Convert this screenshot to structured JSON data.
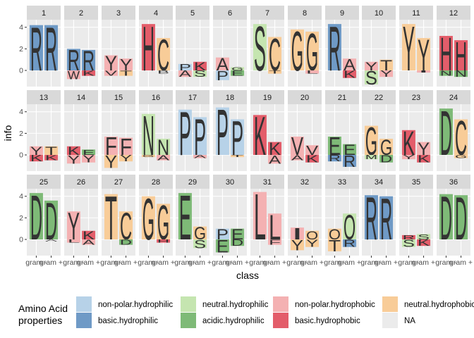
{
  "chart_data": {
    "type": "sequence-logo-facets",
    "xlabel": "class",
    "ylabel": "info",
    "ylim": [
      -1.5,
      4.7
    ],
    "yticks": [
      0,
      2,
      4
    ],
    "grid": true,
    "x_categories": [
      "gram -",
      "gram +"
    ],
    "x_tick_labels": [
      "gram -",
      "gram +"
    ],
    "legend": {
      "title_lines": [
        "Amino Acid",
        "properties"
      ],
      "placement": "bottom",
      "entries": [
        {
          "label": "non-polar.hydrophilic",
          "color": "#B7D2E8"
        },
        {
          "label": "neutral.hydrophilic",
          "color": "#C5E5B0"
        },
        {
          "label": "non-polar.hydrophobic",
          "color": "#F4B1B2"
        },
        {
          "label": "neutral.hydrophobic",
          "color": "#F8CC98"
        },
        {
          "label": "basic.hydrophilic",
          "color": "#6F9AC6"
        },
        {
          "label": "acidic.hydrophilic",
          "color": "#7EBA77"
        },
        {
          "label": "basic.hydrophobic",
          "color": "#E35D6A"
        },
        {
          "label": "NA",
          "color": "#EBEBEB"
        }
      ]
    },
    "panels": [
      {
        "id": "1",
        "columns": [
          [
            [
              "R",
              4.2,
              "basic.hydrophilic"
            ]
          ],
          [
            [
              "R",
              4.2,
              "basic.hydrophilic"
            ]
          ]
        ]
      },
      {
        "id": "2",
        "columns": [
          [
            [
              "R",
              2.0,
              "basic.hydrophilic"
            ],
            [
              "W",
              -0.8,
              "non-polar.hydrophobic"
            ]
          ],
          [
            [
              "R",
              1.9,
              "basic.hydrophilic"
            ],
            [
              "K",
              -0.5,
              "basic.hydrophobic"
            ]
          ]
        ]
      },
      {
        "id": "3",
        "columns": [
          [
            [
              "Y",
              1.4,
              "non-polar.hydrophobic"
            ],
            [
              "V",
              -0.5,
              "non-polar.hydrophobic"
            ]
          ],
          [
            [
              "Y",
              1.1,
              "non-polar.hydrophobic"
            ],
            [
              "T",
              -0.5,
              "neutral.hydrophobic"
            ]
          ]
        ]
      },
      {
        "id": "4",
        "columns": [
          [
            [
              "H",
              4.3,
              "basic.hydrophobic"
            ]
          ],
          [
            [
              "C",
              3.0,
              "neutral.hydrophobic"
            ],
            [
              "B",
              -0.3,
              "NA"
            ]
          ]
        ]
      },
      {
        "id": "5",
        "columns": [
          [
            [
              "P",
              0.6,
              "non-polar.hydrophilic"
            ],
            [
              "A",
              -0.6,
              "non-polar.hydrophobic"
            ]
          ],
          [
            [
              "K",
              0.8,
              "basic.hydrophobic"
            ],
            [
              "S",
              -0.6,
              "neutral.hydrophilic"
            ]
          ]
        ]
      },
      {
        "id": "6",
        "columns": [
          [
            [
              "A",
              1.2,
              "non-polar.hydrophobic"
            ],
            [
              "P",
              -0.9,
              "non-polar.hydrophilic"
            ]
          ],
          [
            [
              "G",
              0.3,
              "neutral.hydrophilic"
            ],
            [
              "E",
              -0.5,
              "acidic.hydrophilic"
            ]
          ]
        ]
      },
      {
        "id": "7",
        "columns": [
          [
            [
              "S",
              4.3,
              "neutral.hydrophilic"
            ]
          ],
          [
            [
              "C",
              3.1,
              "neutral.hydrophobic"
            ],
            [
              "T",
              -0.3,
              "neutral.hydrophobic"
            ]
          ]
        ]
      },
      {
        "id": "8",
        "columns": [
          [
            [
              "G",
              3.8,
              "neutral.hydrophobic"
            ]
          ],
          [
            [
              "G",
              3.6,
              "neutral.hydrophobic"
            ],
            [
              "L",
              -0.3,
              "non-polar.hydrophobic"
            ]
          ]
        ]
      },
      {
        "id": "9",
        "columns": [
          [
            [
              "R",
              4.3,
              "basic.hydrophilic"
            ]
          ],
          [
            [
              "A",
              1.1,
              "non-polar.hydrophobic"
            ],
            [
              "K",
              -0.7,
              "basic.hydrophobic"
            ]
          ]
        ]
      },
      {
        "id": "10",
        "columns": [
          [
            [
              "Y",
              0.8,
              "non-polar.hydrophobic"
            ],
            [
              "S",
              -1.3,
              "neutral.hydrophilic"
            ]
          ],
          [
            [
              "T",
              1.0,
              "neutral.hydrophobic"
            ],
            [
              "Y",
              -0.6,
              "non-polar.hydrophobic"
            ]
          ]
        ]
      },
      {
        "id": "11",
        "columns": [
          [
            [
              "Y",
              4.3,
              "neutral.hydrophobic"
            ]
          ],
          [
            [
              "Y",
              3.0,
              "neutral.hydrophobic"
            ],
            [
              "I",
              -0.2,
              "non-polar.hydrophobic"
            ]
          ]
        ]
      },
      {
        "id": "12",
        "columns": [
          [
            [
              "H",
              3.2,
              "basic.hydrophobic"
            ],
            [
              "N",
              -0.5,
              "acidic.hydrophilic"
            ]
          ],
          [
            [
              "H",
              2.8,
              "basic.hydrophobic"
            ],
            [
              "N",
              -0.6,
              "acidic.hydrophilic"
            ]
          ]
        ]
      },
      {
        "id": "13",
        "columns": [
          [
            [
              "Y",
              0.8,
              "non-polar.hydrophobic"
            ],
            [
              "K",
              -0.6,
              "basic.hydrophobic"
            ]
          ],
          [
            [
              "T",
              0.8,
              "neutral.hydrophobic"
            ],
            [
              "K",
              -0.5,
              "basic.hydrophobic"
            ]
          ]
        ]
      },
      {
        "id": "14",
        "columns": [
          [
            [
              "K",
              0.8,
              "basic.hydrophobic"
            ],
            [
              "Y",
              -0.8,
              "non-polar.hydrophobic"
            ]
          ],
          [
            [
              "E",
              0.5,
              "acidic.hydrophilic"
            ],
            [
              "Y",
              -0.7,
              "non-polar.hydrophobic"
            ]
          ]
        ]
      },
      {
        "id": "15",
        "columns": [
          [
            [
              "F",
              1.7,
              "non-polar.hydrophobic"
            ],
            [
              "Y",
              -1.2,
              "neutral.hydrophobic"
            ]
          ],
          [
            [
              "F",
              1.6,
              "non-polar.hydrophobic"
            ],
            [
              "Y",
              -0.6,
              "neutral.hydrophobic"
            ]
          ]
        ]
      },
      {
        "id": "16",
        "columns": [
          [
            [
              "N",
              3.8,
              "neutral.hydrophilic"
            ],
            [
              "G",
              -0.2,
              "neutral.hydrophobic"
            ]
          ],
          [
            [
              "N",
              1.5,
              "neutral.hydrophilic"
            ],
            [
              "A",
              -0.5,
              "non-polar.hydrophobic"
            ]
          ]
        ]
      },
      {
        "id": "17",
        "columns": [
          [
            [
              "P",
              4.2,
              "non-polar.hydrophilic"
            ]
          ],
          [
            [
              "P",
              3.5,
              "non-polar.hydrophilic"
            ],
            [
              "A",
              -0.3,
              "non-polar.hydrophobic"
            ]
          ]
        ]
      },
      {
        "id": "18",
        "columns": [
          [
            [
              "P",
              4.4,
              "non-polar.hydrophilic"
            ]
          ],
          [
            [
              "P",
              3.3,
              "non-polar.hydrophilic"
            ],
            [
              "T",
              -0.2,
              "neutral.hydrophobic"
            ]
          ]
        ]
      },
      {
        "id": "19",
        "columns": [
          [
            [
              "K",
              3.7,
              "basic.hydrophobic"
            ]
          ],
          [
            [
              "K",
              1.2,
              "basic.hydrophobic"
            ],
            [
              "A",
              -0.8,
              "non-polar.hydrophobic"
            ]
          ]
        ]
      },
      {
        "id": "20",
        "columns": [
          [
            [
              "V",
              1.7,
              "non-polar.hydrophobic"
            ],
            [
              "A",
              -0.5,
              "non-polar.hydrophobic"
            ]
          ],
          [
            [
              "V",
              0.9,
              "non-polar.hydrophobic"
            ],
            [
              "K",
              -0.7,
              "basic.hydrophobic"
            ]
          ]
        ]
      },
      {
        "id": "21",
        "columns": [
          [
            [
              "E",
              1.7,
              "acidic.hydrophilic"
            ],
            [
              "R",
              -0.6,
              "basic.hydrophilic"
            ]
          ],
          [
            [
              "E",
              1.0,
              "acidic.hydrophilic"
            ],
            [
              "R",
              -1.1,
              "basic.hydrophilic"
            ]
          ]
        ]
      },
      {
        "id": "22",
        "columns": [
          [
            [
              "G",
              2.7,
              "neutral.hydrophobic"
            ],
            [
              "M",
              -0.4,
              "neutral.hydrophilic"
            ]
          ],
          [
            [
              "G",
              1.5,
              "neutral.hydrophobic"
            ],
            [
              "D",
              -0.7,
              "acidic.hydrophilic"
            ]
          ]
        ]
      },
      {
        "id": "23",
        "columns": [
          [
            [
              "K",
              2.3,
              "basic.hydrophobic"
            ],
            [
              "Y",
              -0.4,
              "non-polar.hydrophobic"
            ]
          ],
          [
            [
              "Y",
              1.2,
              "non-polar.hydrophobic"
            ],
            [
              "K",
              -0.7,
              "basic.hydrophobic"
            ]
          ]
        ]
      },
      {
        "id": "24",
        "columns": [
          [
            [
              "D",
              4.3,
              "acidic.hydrophilic"
            ]
          ],
          [
            [
              "C",
              3.3,
              "neutral.hydrophobic"
            ],
            [
              "G",
              -0.3,
              "neutral.hydrophobic"
            ]
          ]
        ]
      },
      {
        "id": "25",
        "columns": [
          [
            [
              "D",
              4.3,
              "acidic.hydrophilic"
            ]
          ],
          [
            [
              "D",
              3.6,
              "acidic.hydrophilic"
            ],
            [
              "A",
              -0.2,
              "NA"
            ]
          ]
        ]
      },
      {
        "id": "26",
        "columns": [
          [
            [
              "Y",
              2.6,
              "non-polar.hydrophobic"
            ],
            [
              "L",
              -0.3,
              "non-polar.hydrophobic"
            ]
          ],
          [
            [
              "K",
              0.8,
              "basic.hydrophobic"
            ],
            [
              "A",
              -0.5,
              "non-polar.hydrophobic"
            ]
          ]
        ]
      },
      {
        "id": "27",
        "columns": [
          [
            [
              "T",
              4.2,
              "neutral.hydrophobic"
            ]
          ],
          [
            [
              "C",
              2.6,
              "neutral.hydrophobic"
            ],
            [
              "D",
              -0.5,
              "acidic.hydrophilic"
            ]
          ]
        ]
      },
      {
        "id": "28",
        "columns": [
          [
            [
              "G",
              4.0,
              "neutral.hydrophobic"
            ]
          ],
          [
            [
              "G",
              3.3,
              "neutral.hydrophobic"
            ],
            [
              "H",
              -0.3,
              "basic.hydrophobic"
            ]
          ]
        ]
      },
      {
        "id": "29",
        "columns": [
          [
            [
              "E",
              4.3,
              "acidic.hydrophilic"
            ]
          ],
          [
            [
              "G",
              1.2,
              "neutral.hydrophobic"
            ],
            [
              "S",
              -0.8,
              "neutral.hydrophilic"
            ]
          ]
        ]
      },
      {
        "id": "30",
        "columns": [
          [
            [
              "P",
              1.0,
              "non-polar.hydrophilic"
            ],
            [
              "E",
              -1.2,
              "acidic.hydrophilic"
            ]
          ],
          [
            [
              "E",
              1.0,
              "acidic.hydrophilic"
            ],
            [
              "D",
              -0.6,
              "acidic.hydrophilic"
            ]
          ]
        ]
      },
      {
        "id": "31",
        "columns": [
          [
            [
              "L",
              4.4,
              "non-polar.hydrophobic"
            ]
          ],
          [
            [
              "L",
              2.4,
              "non-polar.hydrophobic"
            ],
            [
              "F",
              -0.5,
              "non-polar.hydrophobic"
            ]
          ]
        ]
      },
      {
        "id": "32",
        "columns": [
          [
            [
              "I",
              1.1,
              "non-polar.hydrophobic"
            ],
            [
              "Y",
              -1.0,
              "neutral.hydrophobic"
            ]
          ],
          [
            [
              "Q",
              0.8,
              "neutral.hydrophobic"
            ],
            [
              "Y",
              -0.7,
              "neutral.hydrophobic"
            ]
          ]
        ]
      },
      {
        "id": "33",
        "columns": [
          [
            [
              "Q",
              1.0,
              "neutral.hydrophobic"
            ],
            [
              "T",
              -1.1,
              "neutral.hydrophobic"
            ]
          ],
          [
            [
              "Q",
              2.4,
              "neutral.hydrophilic"
            ],
            [
              "R",
              -0.7,
              "basic.hydrophilic"
            ]
          ]
        ]
      },
      {
        "id": "34",
        "columns": [
          [
            [
              "R",
              4.1,
              "basic.hydrophilic"
            ]
          ],
          [
            [
              "R",
              4.0,
              "basic.hydrophilic"
            ]
          ]
        ]
      },
      {
        "id": "35",
        "columns": [
          [
            [
              "R",
              0.4,
              "basic.hydrophobic"
            ],
            [
              "S",
              -0.7,
              "neutral.hydrophilic"
            ]
          ],
          [
            [
              "S",
              0.5,
              "neutral.hydrophilic"
            ],
            [
              "K",
              -0.6,
              "basic.hydrophobic"
            ]
          ]
        ]
      },
      {
        "id": "36",
        "columns": [
          [
            [
              "D",
              4.2,
              "acidic.hydrophilic"
            ]
          ],
          [
            [
              "D",
              4.1,
              "acidic.hydrophilic"
            ]
          ]
        ]
      }
    ]
  }
}
